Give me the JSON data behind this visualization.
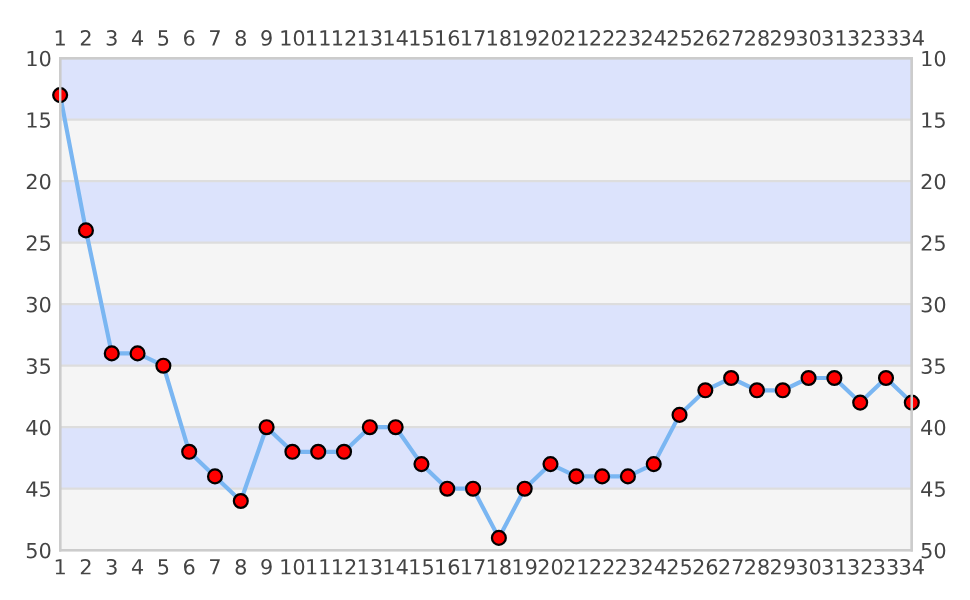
{
  "chart_data": {
    "type": "line",
    "x": [
      1,
      2,
      3,
      4,
      5,
      6,
      7,
      8,
      9,
      10,
      11,
      12,
      13,
      14,
      15,
      16,
      17,
      18,
      19,
      20,
      21,
      22,
      23,
      24,
      25,
      26,
      27,
      28,
      29,
      30,
      31,
      32,
      33,
      34
    ],
    "series": [
      {
        "color": "#7ab6f2",
        "values": [
          13,
          24,
          34,
          34,
          35,
          42,
          44,
          46,
          40,
          42,
          42,
          42,
          40,
          40,
          43,
          45,
          45,
          49,
          45,
          43,
          44,
          44,
          44,
          43,
          39,
          37,
          36,
          37,
          37,
          36,
          36,
          38,
          36,
          38
        ]
      }
    ],
    "marker": "circle",
    "xlim": [
      1,
      34
    ],
    "xticks": [
      1,
      2,
      3,
      4,
      5,
      6,
      7,
      8,
      9,
      10,
      11,
      12,
      13,
      14,
      15,
      16,
      17,
      18,
      19,
      20,
      21,
      22,
      23,
      24,
      25,
      26,
      27,
      28,
      29,
      30,
      31,
      32,
      33,
      34
    ],
    "x2lim": [
      1,
      34
    ],
    "x2ticks": [
      1,
      2,
      3,
      4,
      5,
      6,
      7,
      8,
      9,
      10,
      11,
      12,
      13,
      14,
      15,
      16,
      17,
      18,
      19,
      20,
      21,
      22,
      23,
      24,
      25,
      26,
      27,
      28,
      29,
      30,
      31,
      32,
      33,
      34
    ],
    "ylim": [
      50,
      10
    ],
    "yticks": [
      10,
      15,
      20,
      25,
      30,
      35,
      40,
      45,
      50
    ],
    "y2lim": [
      50,
      10
    ],
    "y2ticks": [
      10,
      15,
      20,
      25,
      30,
      35,
      40,
      45,
      50
    ],
    "grid": "y",
    "bands": [
      {
        "axis": "y",
        "from": 10,
        "to": 15,
        "color": "#dce3fc"
      },
      {
        "axis": "y",
        "from": 15,
        "to": 20,
        "color": "#f5f5f5"
      },
      {
        "axis": "y",
        "from": 20,
        "to": 25,
        "color": "#dce3fc"
      },
      {
        "axis": "y",
        "from": 25,
        "to": 30,
        "color": "#f5f5f5"
      },
      {
        "axis": "y",
        "from": 30,
        "to": 35,
        "color": "#dce3fc"
      },
      {
        "axis": "y",
        "from": 35,
        "to": 40,
        "color": "#f5f5f5"
      },
      {
        "axis": "y",
        "from": 40,
        "to": 45,
        "color": "#dce3fc"
      },
      {
        "axis": "y",
        "from": 45,
        "to": 50,
        "color": "#f5f5f5"
      }
    ]
  }
}
